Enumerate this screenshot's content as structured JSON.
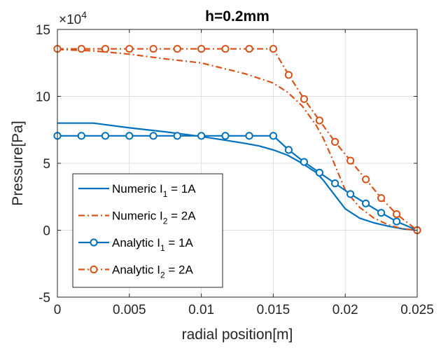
{
  "chart_data": {
    "type": "line",
    "title": "h=0.2mm",
    "xlabel": "radial position[m]",
    "ylabel": "Pressure[Pa]",
    "xlim": [
      0,
      0.025
    ],
    "ylim": [
      -5,
      15
    ],
    "y_exponent_label": "×10",
    "y_exponent_power": "4",
    "grid": true,
    "legend_position": "bottom-left",
    "xticks": [
      "0",
      "0.005",
      "0.01",
      "0.015",
      "0.02",
      "0.025"
    ],
    "xtick_values": [
      0,
      0.005,
      0.01,
      0.015,
      0.02,
      0.025
    ],
    "yticks": [
      "-5",
      "0",
      "5",
      "10",
      "15"
    ],
    "ytick_values": [
      -5,
      0,
      5,
      10,
      15
    ],
    "series": [
      {
        "name": "Numeric I",
        "sub": "1",
        "suffix": " = 1A",
        "color": "#0072BD",
        "style": "solid",
        "marker": "none",
        "x": [
          0,
          0.0025,
          0.005,
          0.0075,
          0.01,
          0.0115,
          0.013,
          0.014,
          0.015,
          0.016,
          0.017,
          0.018,
          0.0185,
          0.019,
          0.0195,
          0.02,
          0.021,
          0.022,
          0.023,
          0.024,
          0.025
        ],
        "y": [
          8.0,
          8.0,
          7.65,
          7.35,
          7.0,
          6.75,
          6.5,
          6.3,
          6.0,
          5.6,
          5.0,
          4.3,
          3.7,
          3.0,
          2.3,
          1.6,
          0.9,
          0.55,
          0.3,
          0.1,
          0.0
        ]
      },
      {
        "name": "Numeric I",
        "sub": "2",
        "suffix": " = 2A",
        "color": "#D95319",
        "style": "dashdot",
        "marker": "none",
        "x": [
          0,
          0.0025,
          0.005,
          0.0075,
          0.01,
          0.0115,
          0.013,
          0.014,
          0.015,
          0.016,
          0.017,
          0.018,
          0.0185,
          0.019,
          0.0195,
          0.02,
          0.021,
          0.022,
          0.023,
          0.024,
          0.025
        ],
        "y": [
          13.5,
          13.4,
          13.15,
          12.8,
          12.5,
          12.1,
          11.7,
          11.35,
          11.0,
          10.3,
          9.3,
          7.8,
          6.8,
          5.6,
          4.3,
          3.0,
          1.7,
          0.9,
          0.4,
          0.1,
          0.0
        ]
      },
      {
        "name": "Analytic I",
        "sub": "1",
        "suffix": " = 1A",
        "color": "#0072BD",
        "style": "solid",
        "marker": "circle",
        "x": [
          0,
          0.00167,
          0.00333,
          0.005,
          0.00667,
          0.00833,
          0.01,
          0.01167,
          0.01333,
          0.015,
          0.01607,
          0.01714,
          0.01821,
          0.01929,
          0.02036,
          0.02143,
          0.0225,
          0.02357,
          0.025
        ],
        "y": [
          7.05,
          7.05,
          7.05,
          7.05,
          7.05,
          7.05,
          7.05,
          7.05,
          7.05,
          7.05,
          6.0,
          5.1,
          4.3,
          3.5,
          2.7,
          2.0,
          1.3,
          0.65,
          0.0
        ]
      },
      {
        "name": "Analytic I",
        "sub": "2",
        "suffix": " = 2A",
        "color": "#D95319",
        "style": "dashdot",
        "marker": "circle",
        "x": [
          0,
          0.00167,
          0.00333,
          0.005,
          0.00667,
          0.00833,
          0.01,
          0.01167,
          0.01333,
          0.015,
          0.01607,
          0.01714,
          0.01821,
          0.01929,
          0.02036,
          0.02143,
          0.0225,
          0.02357,
          0.025
        ],
        "y": [
          13.55,
          13.55,
          13.55,
          13.55,
          13.55,
          13.55,
          13.55,
          13.55,
          13.55,
          13.55,
          11.6,
          9.8,
          8.2,
          6.6,
          5.2,
          3.8,
          2.4,
          1.2,
          0.0
        ]
      }
    ]
  }
}
